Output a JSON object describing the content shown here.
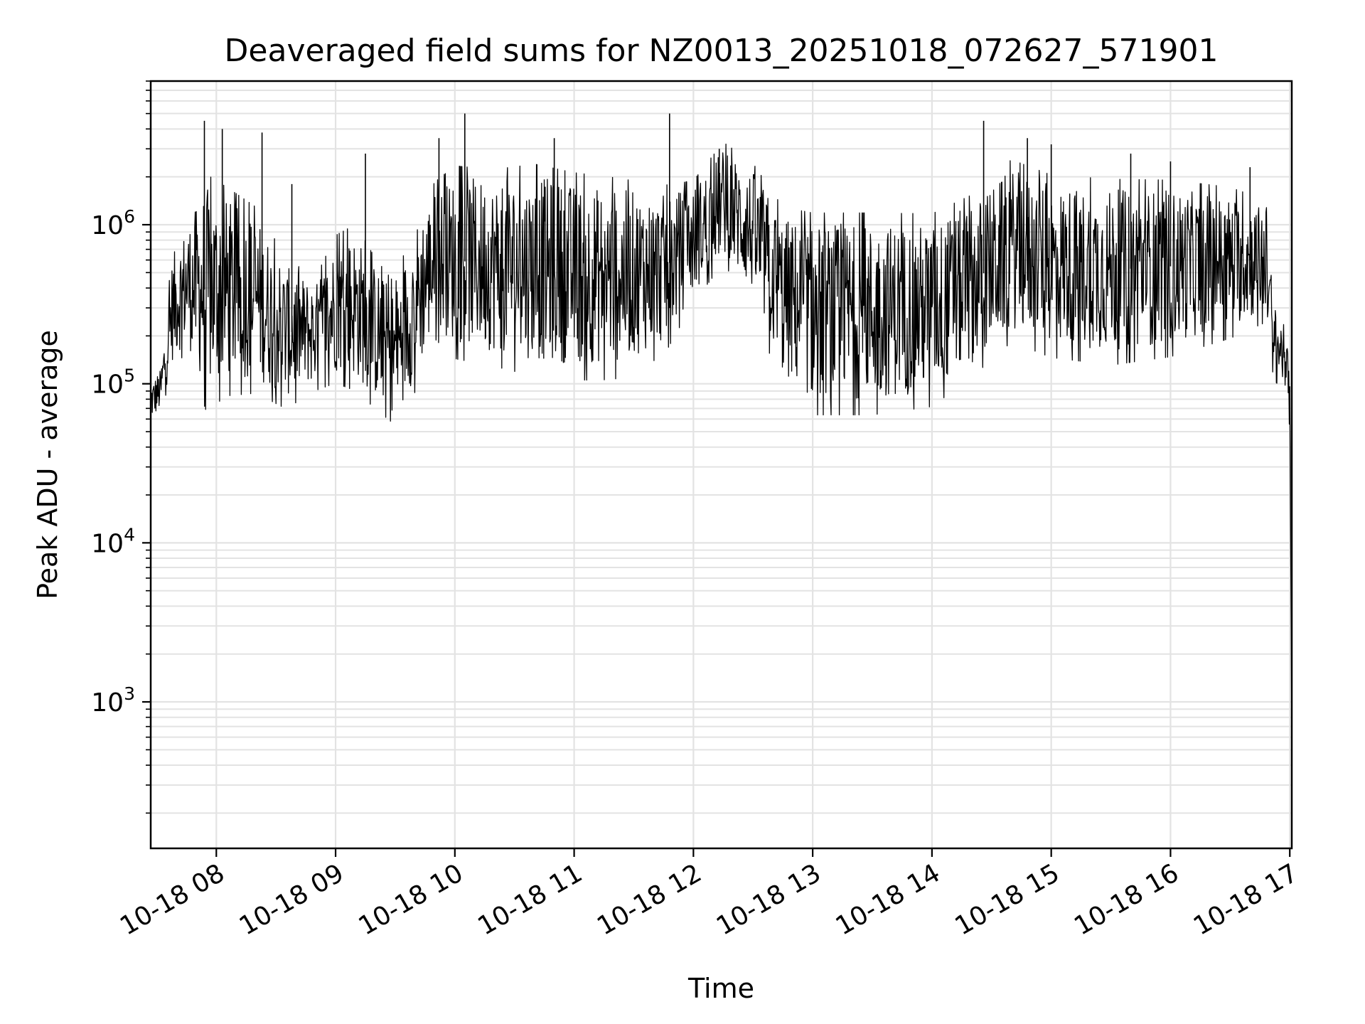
{
  "chart_data": {
    "type": "line",
    "title": "Deaveraged field sums for NZ0013_20251018_072627_571901",
    "xlabel": "Time",
    "ylabel": "Peak ADU - average",
    "yscale": "log",
    "ylim": [
      120,
      8000000
    ],
    "xlim": [
      "2025-10-18 07:27",
      "2025-10-18 17:01"
    ],
    "grid": true,
    "x_ticks": [
      {
        "t": "2025-10-18 08:00",
        "label": "10-18 08"
      },
      {
        "t": "2025-10-18 09:00",
        "label": "10-18 09"
      },
      {
        "t": "2025-10-18 10:00",
        "label": "10-18 10"
      },
      {
        "t": "2025-10-18 11:00",
        "label": "10-18 11"
      },
      {
        "t": "2025-10-18 12:00",
        "label": "10-18 12"
      },
      {
        "t": "2025-10-18 13:00",
        "label": "10-18 13"
      },
      {
        "t": "2025-10-18 14:00",
        "label": "10-18 14"
      },
      {
        "t": "2025-10-18 15:00",
        "label": "10-18 15"
      },
      {
        "t": "2025-10-18 16:00",
        "label": "10-18 16"
      },
      {
        "t": "2025-10-18 17:00",
        "label": "10-18 17"
      }
    ],
    "y_ticks": [
      {
        "value": 1000,
        "base": "10",
        "exp": "3"
      },
      {
        "value": 10000,
        "base": "10",
        "exp": "4"
      },
      {
        "value": 100000,
        "base": "10",
        "exp": "5"
      },
      {
        "value": 1000000,
        "base": "10",
        "exp": "6"
      }
    ],
    "series": [
      {
        "color": "#000000",
        "envelope": [
          {
            "t": "2025-10-18 07:27",
            "low": 60000,
            "high": 100000
          },
          {
            "t": "2025-10-18 07:32",
            "low": 70000,
            "high": 120000
          },
          {
            "t": "2025-10-18 07:38",
            "low": 150000,
            "high": 600000
          },
          {
            "t": "2025-10-18 07:45",
            "low": 200000,
            "high": 900000
          },
          {
            "t": "2025-10-18 07:55",
            "low": 100000,
            "high": 1500000
          },
          {
            "t": "2025-10-18 08:05",
            "low": 120000,
            "high": 1300000
          },
          {
            "t": "2025-10-18 08:20",
            "low": 120000,
            "high": 1000000
          },
          {
            "t": "2025-10-18 08:35",
            "low": 90000,
            "high": 500000
          },
          {
            "t": "2025-10-18 08:50",
            "low": 110000,
            "high": 400000
          },
          {
            "t": "2025-10-18 09:00",
            "low": 130000,
            "high": 700000
          },
          {
            "t": "2025-10-18 09:10",
            "low": 120000,
            "high": 800000
          },
          {
            "t": "2025-10-18 09:20",
            "low": 90000,
            "high": 500000
          },
          {
            "t": "2025-10-18 09:30",
            "low": 70000,
            "high": 350000
          },
          {
            "t": "2025-10-18 09:40",
            "low": 120000,
            "high": 900000
          },
          {
            "t": "2025-10-18 09:50",
            "low": 250000,
            "high": 1500000
          },
          {
            "t": "2025-10-18 10:00",
            "low": 200000,
            "high": 1800000
          },
          {
            "t": "2025-10-18 10:20",
            "low": 180000,
            "high": 1700000
          },
          {
            "t": "2025-10-18 10:40",
            "low": 160000,
            "high": 1800000
          },
          {
            "t": "2025-10-18 11:00",
            "low": 150000,
            "high": 1600000
          },
          {
            "t": "2025-10-18 11:20",
            "low": 150000,
            "high": 1500000
          },
          {
            "t": "2025-10-18 11:45",
            "low": 200000,
            "high": 1400000
          },
          {
            "t": "2025-10-18 12:00",
            "low": 400000,
            "high": 1600000
          },
          {
            "t": "2025-10-18 12:15",
            "low": 700000,
            "high": 2800000
          },
          {
            "t": "2025-10-18 12:30",
            "low": 400000,
            "high": 2000000
          },
          {
            "t": "2025-10-18 12:45",
            "low": 120000,
            "high": 1000000
          },
          {
            "t": "2025-10-18 13:00",
            "low": 90000,
            "high": 900000
          },
          {
            "t": "2025-10-18 13:30",
            "low": 90000,
            "high": 900000
          },
          {
            "t": "2025-10-18 14:00",
            "low": 100000,
            "high": 900000
          },
          {
            "t": "2025-10-18 14:20",
            "low": 150000,
            "high": 1200000
          },
          {
            "t": "2025-10-18 14:40",
            "low": 250000,
            "high": 2000000
          },
          {
            "t": "2025-10-18 15:00",
            "low": 200000,
            "high": 1600000
          },
          {
            "t": "2025-10-18 15:30",
            "low": 180000,
            "high": 1500000
          },
          {
            "t": "2025-10-18 16:00",
            "low": 200000,
            "high": 1500000
          },
          {
            "t": "2025-10-18 16:30",
            "low": 250000,
            "high": 1400000
          },
          {
            "t": "2025-10-18 16:48",
            "low": 300000,
            "high": 1200000
          },
          {
            "t": "2025-10-18 16:52",
            "low": 120000,
            "high": 300000
          },
          {
            "t": "2025-10-18 16:58",
            "low": 100000,
            "high": 200000
          },
          {
            "t": "2025-10-18 17:00",
            "low": 50000,
            "high": 120000
          },
          {
            "t": "2025-10-18 17:01",
            "low": 600,
            "high": 600
          }
        ],
        "spikes": [
          {
            "t": "2025-10-18 07:54",
            "value": 4500000
          },
          {
            "t": "2025-10-18 08:03",
            "value": 4000000
          },
          {
            "t": "2025-10-18 08:23",
            "value": 3800000
          },
          {
            "t": "2025-10-18 08:38",
            "value": 1800000
          },
          {
            "t": "2025-10-18 09:15",
            "value": 2800000
          },
          {
            "t": "2025-10-18 09:52",
            "value": 3500000
          },
          {
            "t": "2025-10-18 10:05",
            "value": 5000000
          },
          {
            "t": "2025-10-18 10:50",
            "value": 3500000
          },
          {
            "t": "2025-10-18 11:48",
            "value": 5000000
          },
          {
            "t": "2025-10-18 12:13",
            "value": 3000000
          },
          {
            "t": "2025-10-18 14:26",
            "value": 4500000
          },
          {
            "t": "2025-10-18 14:48",
            "value": 3500000
          },
          {
            "t": "2025-10-18 15:00",
            "value": 3200000
          },
          {
            "t": "2025-10-18 15:40",
            "value": 2800000
          },
          {
            "t": "2025-10-18 16:00",
            "value": 2500000
          },
          {
            "t": "2025-10-18 16:40",
            "value": 2300000
          }
        ]
      }
    ]
  }
}
